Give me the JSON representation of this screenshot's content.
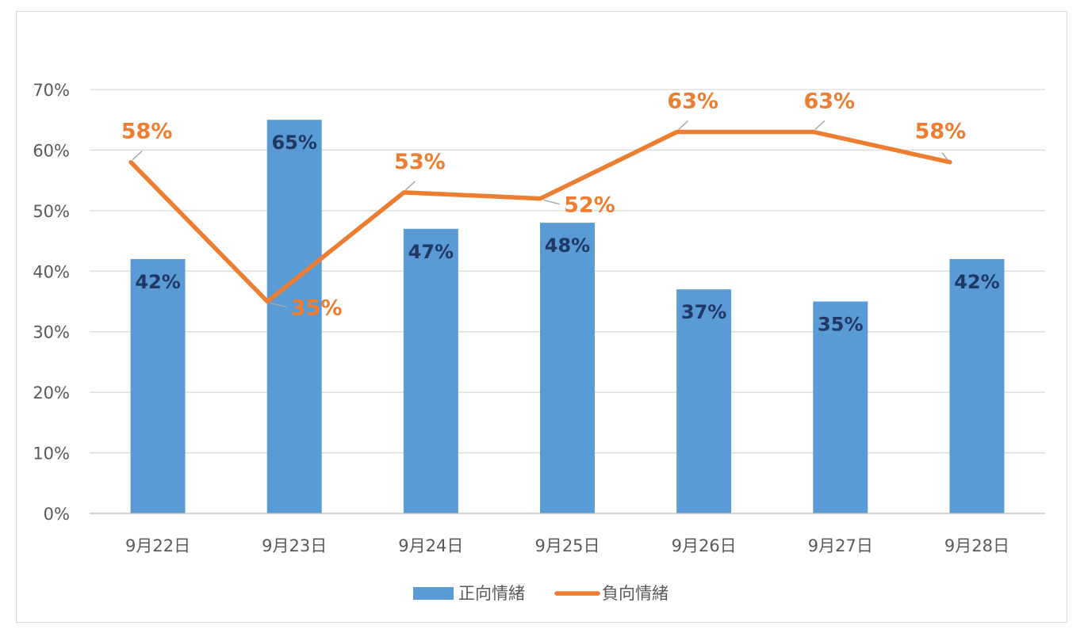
{
  "chart_data": {
    "type": "bar",
    "categories": [
      "9月22日",
      "9月23日",
      "9月24日",
      "9月25日",
      "9月26日",
      "9月27日",
      "9月28日"
    ],
    "series": [
      {
        "name": "正向情緒",
        "type": "bar",
        "color": "#5b9bd5",
        "label_color": "#1f3864",
        "values": [
          42,
          65,
          47,
          48,
          37,
          35,
          42
        ]
      },
      {
        "name": "負向情緒",
        "type": "line",
        "color": "#ed7d31",
        "label_color": "#ed7d31",
        "values": [
          58,
          35,
          53,
          52,
          63,
          63,
          58
        ]
      }
    ],
    "y_ticks": [
      "0%",
      "10%",
      "20%",
      "30%",
      "40%",
      "50%",
      "60%",
      "70%"
    ],
    "ylim": [
      0,
      70
    ],
    "unit_suffix": "%",
    "grid": true,
    "legend": "bottom"
  }
}
